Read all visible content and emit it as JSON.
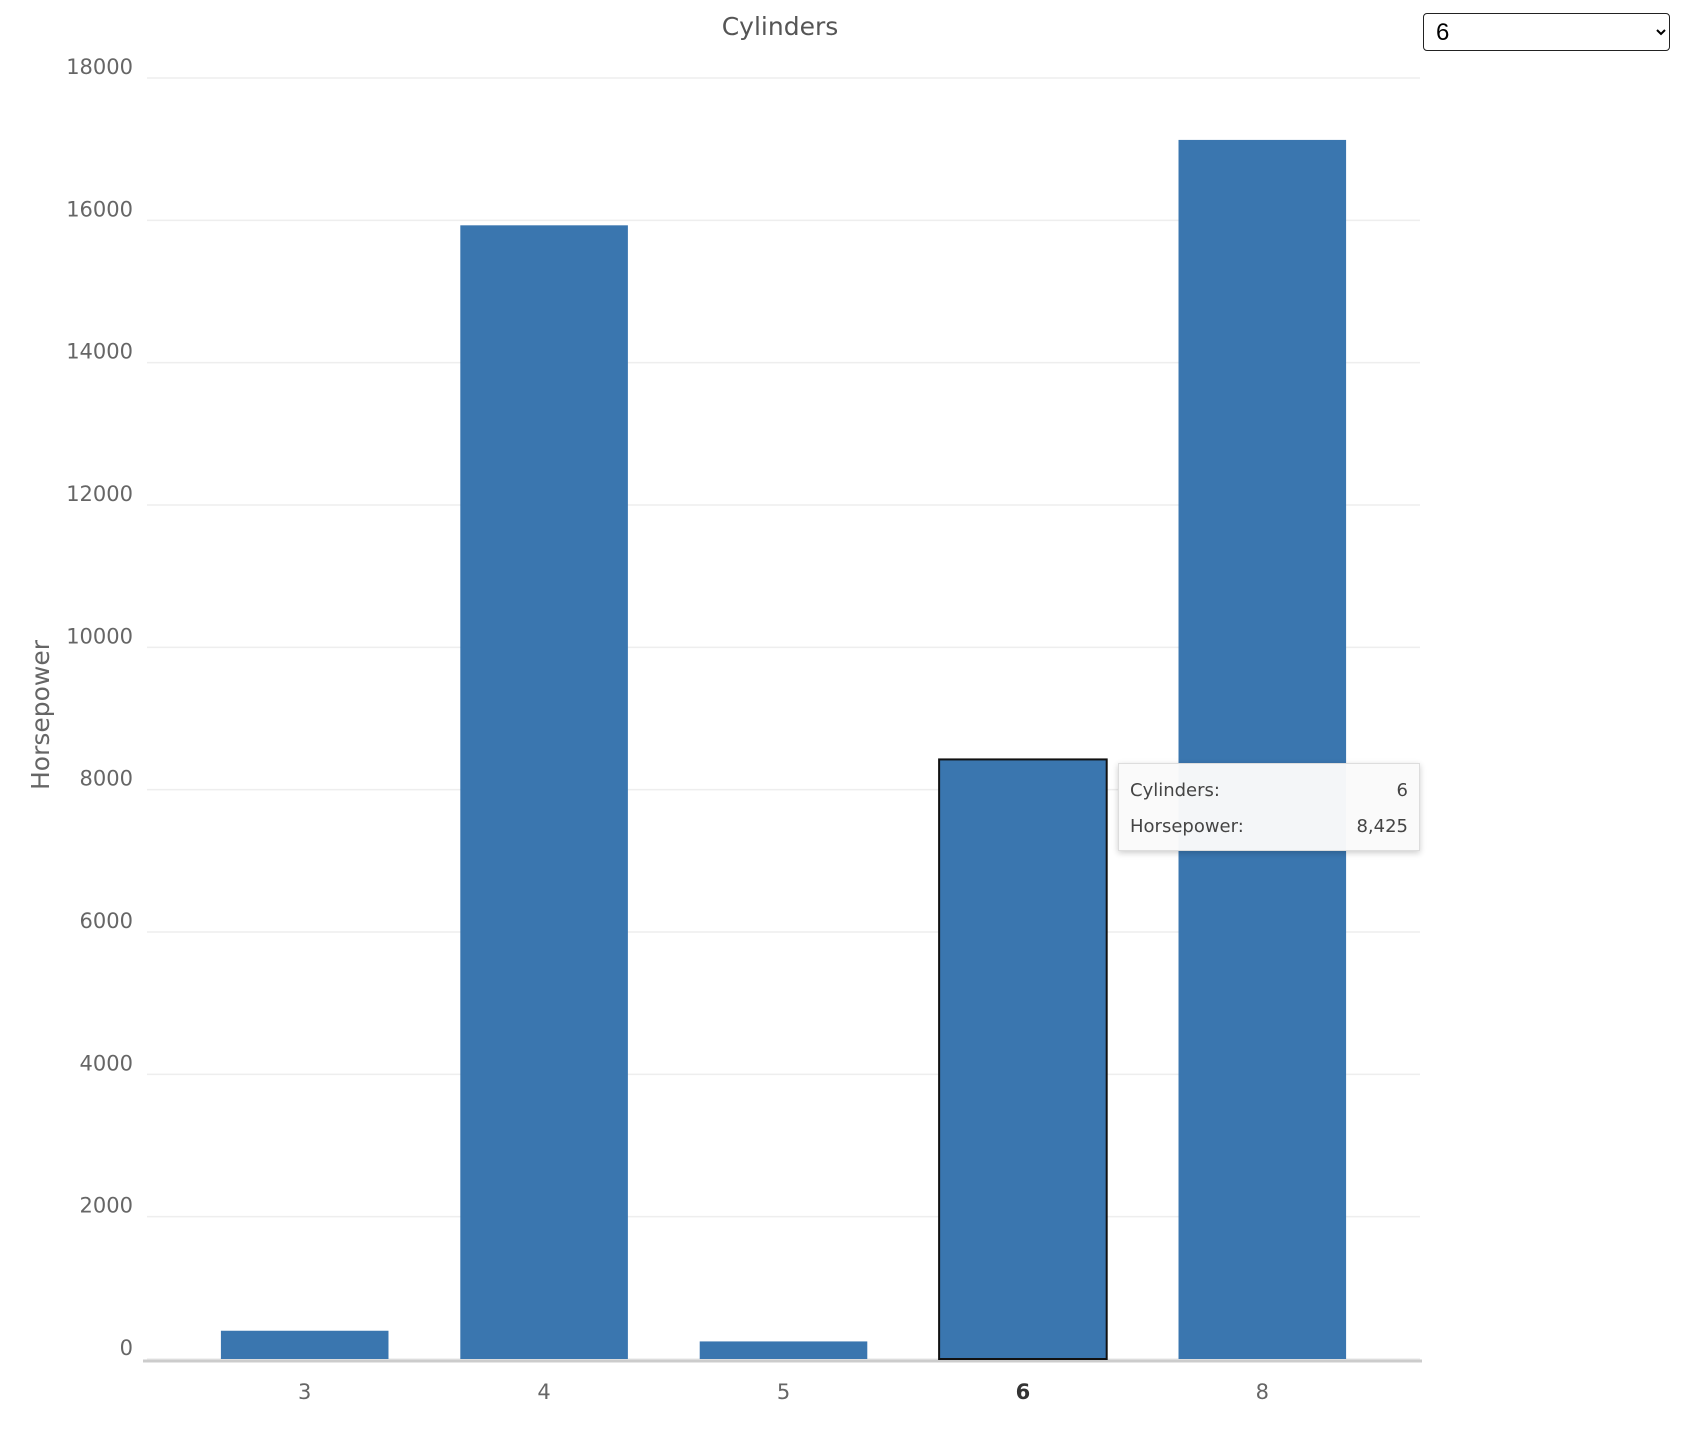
{
  "chart_data": {
    "type": "bar",
    "title": "Cylinders",
    "y_label": "Horsepower",
    "categories": [
      "3",
      "4",
      "5",
      "6",
      "8"
    ],
    "values": [
      397,
      15930,
      247,
      8425,
      17130
    ],
    "color": "#3a76af",
    "selected_category": "6",
    "ylim": [
      0,
      18000
    ],
    "yticks": [
      0,
      2000,
      4000,
      6000,
      8000,
      10000,
      12000,
      14000,
      16000,
      18000
    ],
    "grid": true,
    "tooltip": [
      {
        "label": "Cylinders:",
        "value": "6"
      },
      {
        "label": "Horsepower:",
        "value": "8,425"
      }
    ]
  }
}
